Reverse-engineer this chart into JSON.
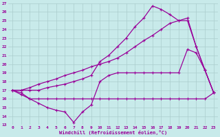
{
  "bg_color": "#c8eaea",
  "line_color": "#990099",
  "grid_color": "#aacccc",
  "xlabel": "Windchill (Refroidissement éolien,°C)",
  "xlim": [
    -0.5,
    23.5
  ],
  "ylim": [
    13,
    27
  ],
  "yticks": [
    13,
    14,
    15,
    16,
    17,
    18,
    19,
    20,
    21,
    22,
    23,
    24,
    25,
    26,
    27
  ],
  "xticks": [
    0,
    1,
    2,
    3,
    4,
    5,
    6,
    7,
    8,
    9,
    10,
    11,
    12,
    13,
    14,
    15,
    16,
    17,
    18,
    19,
    20,
    21,
    22,
    23
  ],
  "line1_x": [
    0,
    1,
    2,
    3,
    4,
    5,
    6,
    7,
    8,
    9,
    10,
    11,
    12,
    13,
    14,
    15,
    16,
    17,
    18,
    19,
    20,
    21,
    22,
    23
  ],
  "line1_y": [
    17.0,
    16.7,
    16.0,
    16.0,
    16.0,
    16.0,
    16.0,
    16.0,
    16.0,
    16.0,
    16.0,
    16.0,
    16.0,
    16.0,
    16.0,
    16.0,
    16.0,
    16.0,
    16.0,
    16.0,
    16.0,
    16.0,
    16.0,
    16.7
  ],
  "line2_x": [
    0,
    1,
    2,
    3,
    4,
    5,
    6,
    7,
    8,
    9,
    10,
    11,
    12,
    13,
    14,
    15,
    16,
    17,
    18,
    19,
    20,
    21,
    22,
    23
  ],
  "line2_y": [
    17.0,
    16.5,
    16.0,
    15.5,
    15.0,
    14.7,
    14.5,
    13.3,
    14.5,
    15.3,
    18.0,
    18.7,
    19.0,
    19.0,
    19.0,
    19.0,
    19.0,
    19.0,
    19.0,
    19.0,
    21.7,
    21.3,
    19.3,
    16.7
  ],
  "line3_x": [
    0,
    1,
    2,
    3,
    4,
    5,
    6,
    7,
    8,
    9,
    10,
    11,
    12,
    13,
    14,
    15,
    16,
    17,
    18,
    19,
    20,
    21,
    22,
    23
  ],
  "line3_y": [
    17.0,
    17.0,
    17.3,
    17.7,
    18.0,
    18.3,
    18.7,
    19.0,
    19.3,
    19.7,
    20.0,
    20.3,
    20.7,
    21.3,
    22.0,
    22.7,
    23.3,
    24.0,
    24.7,
    25.0,
    25.3,
    22.0,
    19.3,
    16.7
  ],
  "line4_x": [
    0,
    1,
    2,
    3,
    4,
    5,
    6,
    7,
    8,
    9,
    10,
    11,
    12,
    13,
    14,
    15,
    16,
    17,
    18,
    19,
    20,
    21,
    22,
    23
  ],
  "line4_y": [
    17.0,
    17.0,
    17.0,
    17.0,
    17.3,
    17.5,
    17.7,
    18.0,
    18.3,
    18.7,
    20.3,
    21.0,
    22.0,
    23.0,
    24.3,
    25.3,
    26.7,
    26.3,
    25.7,
    25.0,
    25.0,
    22.0,
    19.3,
    16.7
  ]
}
